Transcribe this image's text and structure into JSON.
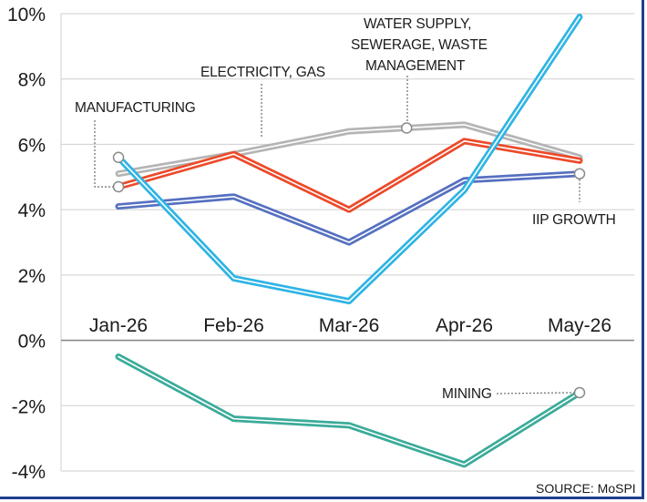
{
  "chart_data": {
    "type": "line",
    "categories": [
      "Jan-26",
      "Feb-26",
      "Mar-26",
      "Apr-26",
      "May-26"
    ],
    "yticks": [
      "10%",
      "8%",
      "6%",
      "4%",
      "2%",
      "0%",
      "-2%",
      "-4%"
    ],
    "ylim": [
      -4,
      10
    ],
    "grid": true,
    "source": "SOURCE: MoSPI",
    "series": [
      {
        "name": "WATER SUPPLY, SEWERAGE, WASTE MANAGEMENT",
        "color": "#b4b4b4",
        "values": [
          5.1,
          5.7,
          6.4,
          6.6,
          5.6
        ]
      },
      {
        "name": "ELECTRICITY, GAS",
        "color": "#ec4a2a",
        "values": [
          4.7,
          5.7,
          4.0,
          6.1,
          5.5
        ]
      },
      {
        "name": "IIP GROWTH",
        "color": "#5670c0",
        "values": [
          4.1,
          4.4,
          3.0,
          4.9,
          5.1
        ]
      },
      {
        "name": "MANUFACTURING",
        "color": "#2fb4e4",
        "values": [
          5.6,
          1.9,
          1.2,
          4.6,
          9.9
        ]
      },
      {
        "name": "MINING",
        "color": "#3aab9a",
        "values": [
          -0.5,
          -2.4,
          -2.6,
          -3.8,
          -1.6
        ]
      }
    ]
  },
  "annotations": {
    "manufacturing": "MANUFACTURING",
    "electricity": "ELECTRICITY, GAS",
    "water_line1": "WATER SUPPLY,",
    "water_line2": "SEWERAGE, WASTE",
    "water_line3": "MANAGEMENT",
    "iip": "IIP GROWTH",
    "mining": "MINING"
  }
}
